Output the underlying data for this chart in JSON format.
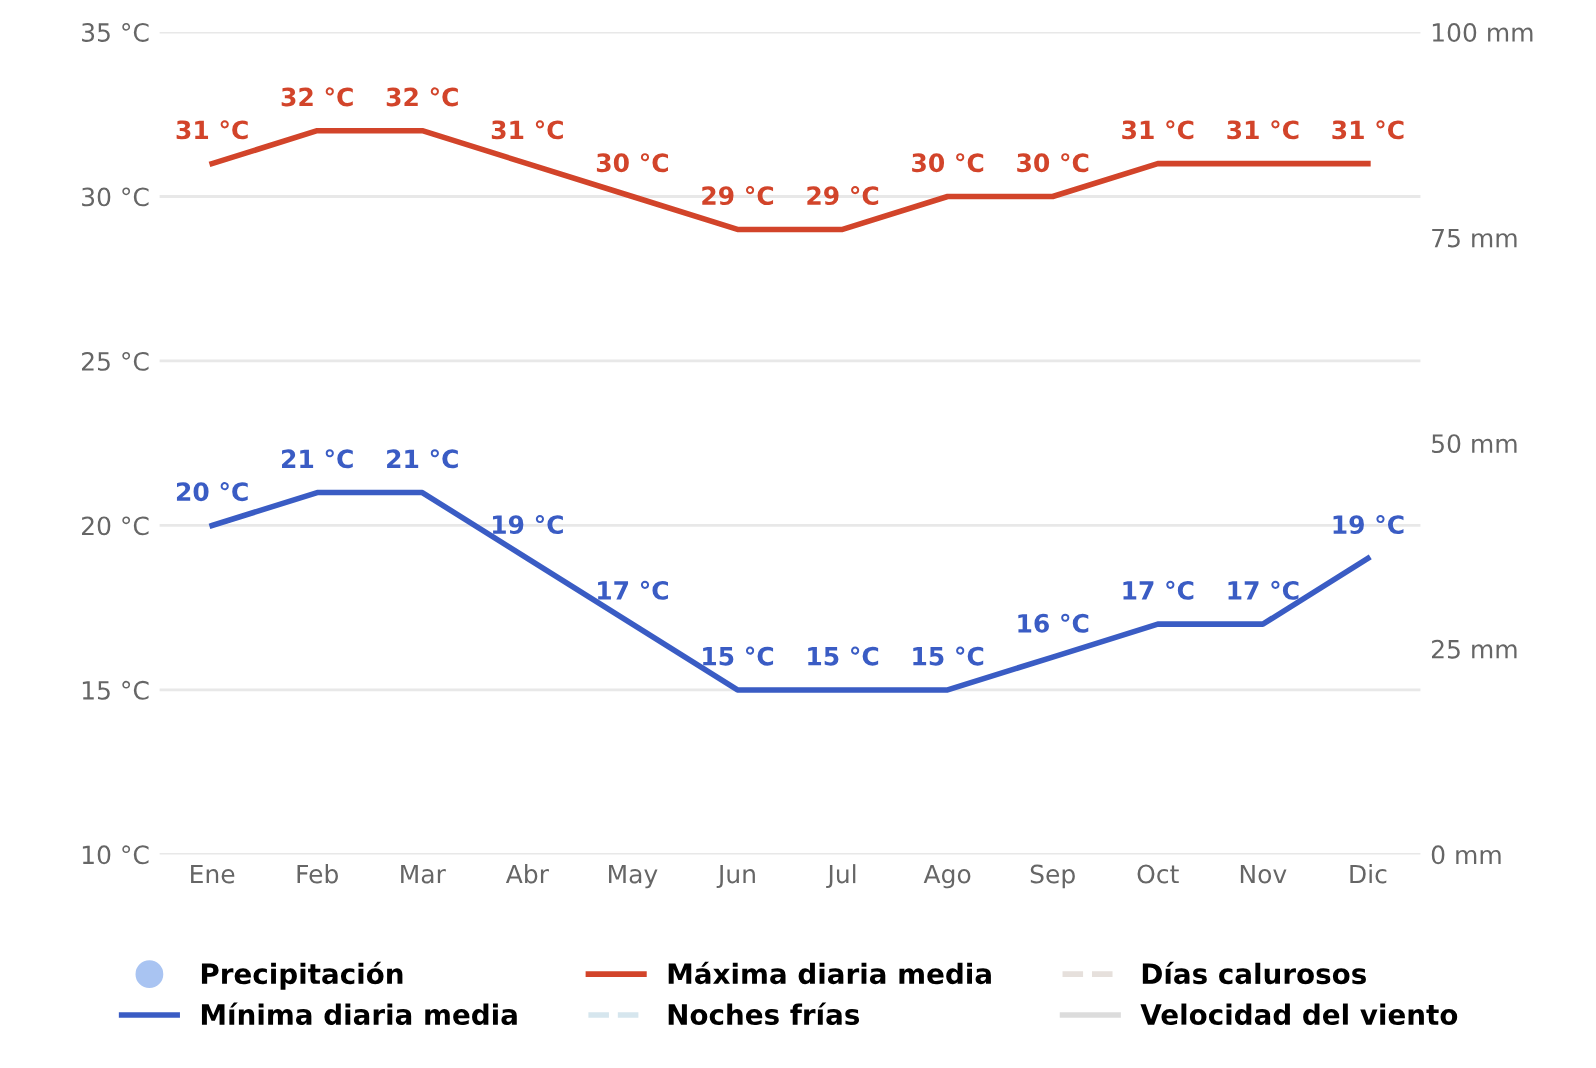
{
  "chart_data": {
    "type": "line",
    "categories": [
      "Ene",
      "Feb",
      "Mar",
      "Abr",
      "May",
      "Jun",
      "Jul",
      "Ago",
      "Sep",
      "Oct",
      "Nov",
      "Dic"
    ],
    "series": [
      {
        "name": "Precipitación",
        "type": "scatter",
        "color": "#a9c4f2",
        "values": [
          null,
          null,
          null,
          null,
          null,
          null,
          null,
          null,
          null,
          null,
          null,
          null
        ]
      },
      {
        "name": "Mínima diaria media",
        "color": "#3a5cc4",
        "values": [
          20,
          21,
          21,
          19,
          17,
          15,
          15,
          15,
          16,
          17,
          17,
          19
        ],
        "value_labels": [
          "20 °C",
          "21 °C",
          "21 °C",
          "19 °C",
          "17 °C",
          "15 °C",
          "15 °C",
          "15 °C",
          "16 °C",
          "17 °C",
          "17 °C",
          "19 °C"
        ]
      },
      {
        "name": "Máxima diaria media",
        "color": "#d2442a",
        "values": [
          31,
          32,
          32,
          31,
          30,
          29,
          29,
          30,
          30,
          31,
          31,
          31
        ],
        "value_labels": [
          "31 °C",
          "32 °C",
          "32 °C",
          "31 °C",
          "30 °C",
          "29 °C",
          "29 °C",
          "30 °C",
          "30 °C",
          "31 °C",
          "31 °C",
          "31 °C"
        ]
      },
      {
        "name": "Noches frías",
        "color": "#d6e6ee",
        "line_style": "dashed",
        "values": [
          null,
          null,
          null,
          null,
          null,
          null,
          null,
          null,
          null,
          null,
          null,
          null
        ]
      },
      {
        "name": "Días calurosos",
        "color": "#e6e0dc",
        "line_style": "dashed",
        "values": [
          null,
          null,
          null,
          null,
          null,
          null,
          null,
          null,
          null,
          null,
          null,
          null
        ]
      },
      {
        "name": "Velocidad del viento",
        "color": "#dcdcdc",
        "values": [
          null,
          null,
          null,
          null,
          null,
          null,
          null,
          null,
          null,
          null,
          null,
          null
        ]
      }
    ],
    "ylim": [
      10,
      35
    ],
    "yticks": [
      {
        "value": 10,
        "label": "10 °C"
      },
      {
        "value": 15,
        "label": "15 °C"
      },
      {
        "value": 20,
        "label": "20 °C"
      },
      {
        "value": 25,
        "label": "25 °C"
      },
      {
        "value": 30,
        "label": "30 °C"
      },
      {
        "value": 35,
        "label": "35 °C"
      }
    ],
    "y2lim": [
      0,
      100
    ],
    "y2ticks": [
      {
        "value": 0,
        "label": "0 mm"
      },
      {
        "value": 25,
        "label": "25 mm"
      },
      {
        "value": 50,
        "label": "50 mm"
      },
      {
        "value": 75,
        "label": "75 mm"
      },
      {
        "value": 100,
        "label": "100 mm"
      }
    ],
    "grid": "y",
    "legend": "bottom",
    "marker": "none"
  }
}
